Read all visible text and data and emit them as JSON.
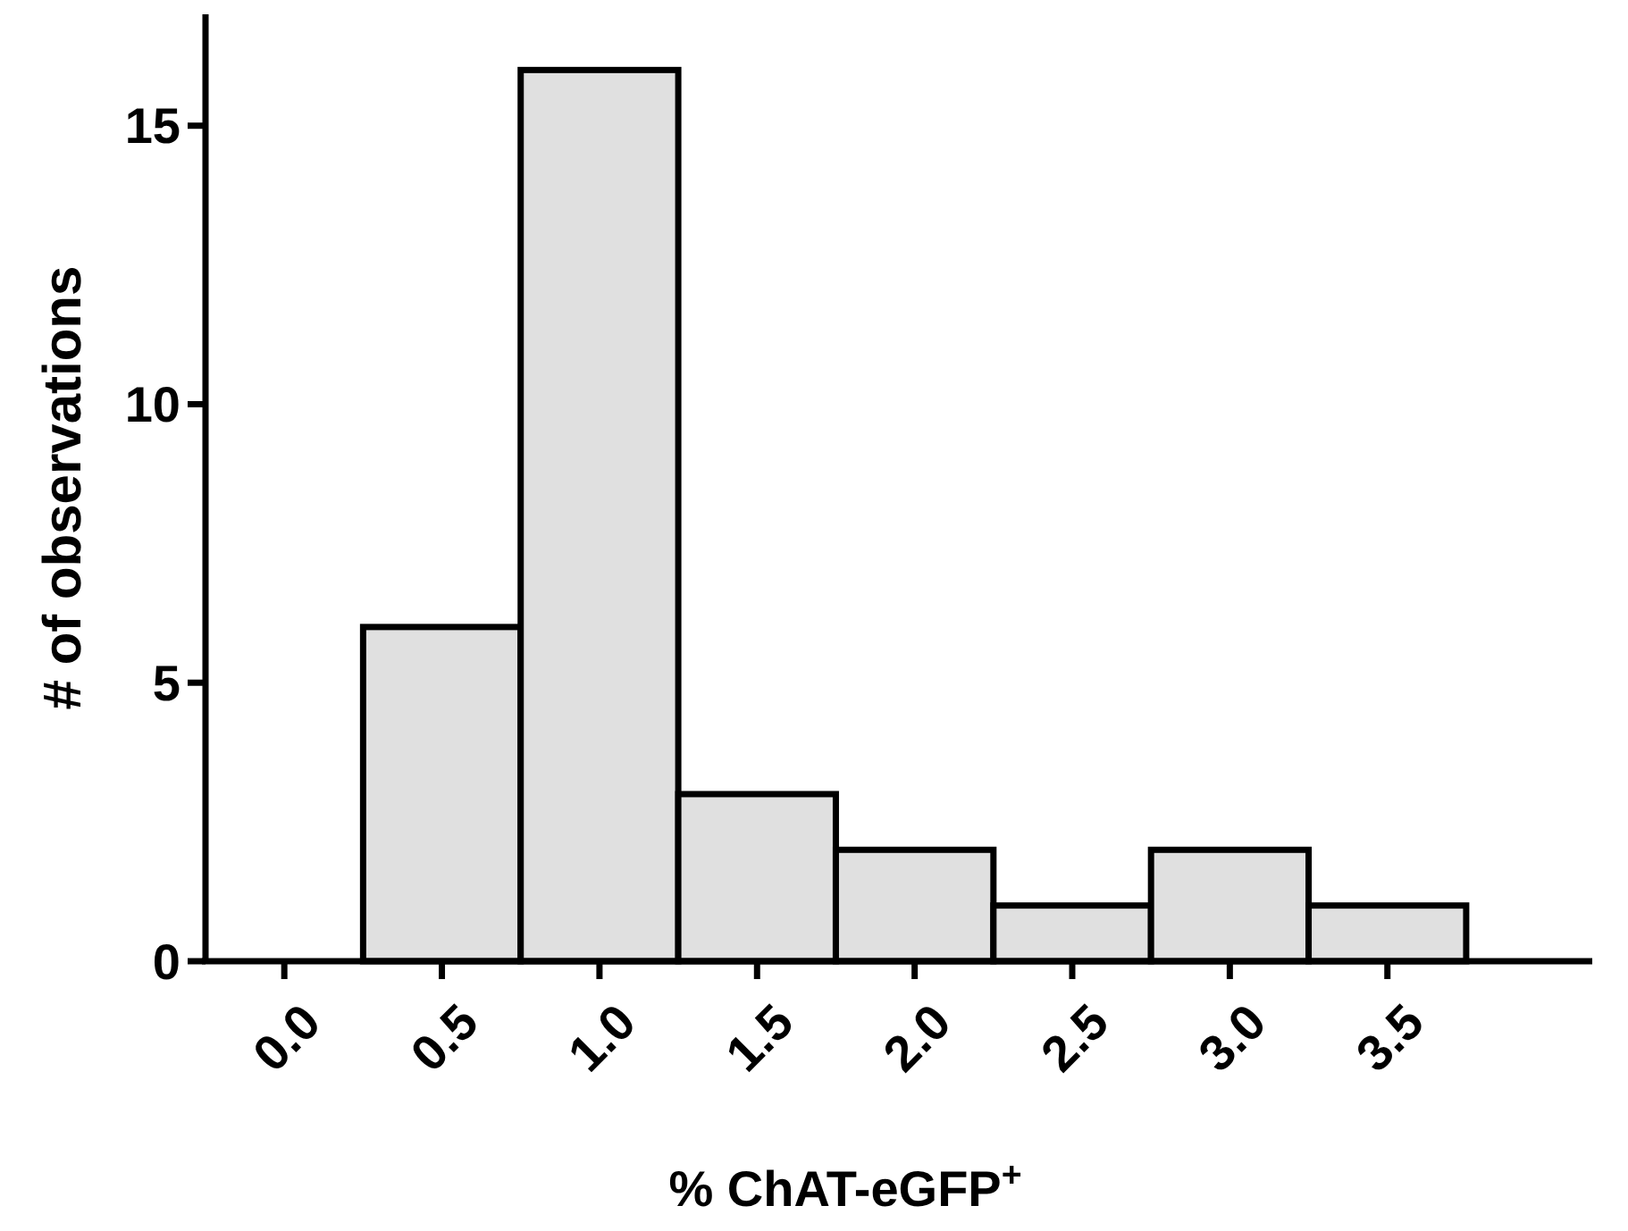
{
  "chart_data": {
    "type": "histogram",
    "xlabel": "% ChAT-eGFP$^{+}$",
    "ylabel": "# of observations",
    "bins": [
      -0.25,
      0.25,
      0.75,
      1.25,
      1.75,
      2.25,
      2.75,
      3.25,
      3.75
    ],
    "values": [
      0,
      6,
      16,
      3,
      2,
      1,
      2,
      1
    ],
    "color": "#e0e0e0",
    "xlim": [
      -0.25,
      4.15
    ],
    "xticks": [
      {
        "value": 0,
        "label": "0.0"
      },
      {
        "value": 0.5,
        "label": "0.5"
      },
      {
        "value": 1,
        "label": "1.0"
      },
      {
        "value": 1.5,
        "label": "1.5"
      },
      {
        "value": 2,
        "label": "2.0"
      },
      {
        "value": 2.5,
        "label": "2.5"
      },
      {
        "value": 3,
        "label": "3.0"
      },
      {
        "value": 3.5,
        "label": "3.5"
      }
    ],
    "ylim": [
      0,
      17
    ],
    "yticks": [
      0,
      5,
      10,
      15
    ],
    "grid": false
  }
}
